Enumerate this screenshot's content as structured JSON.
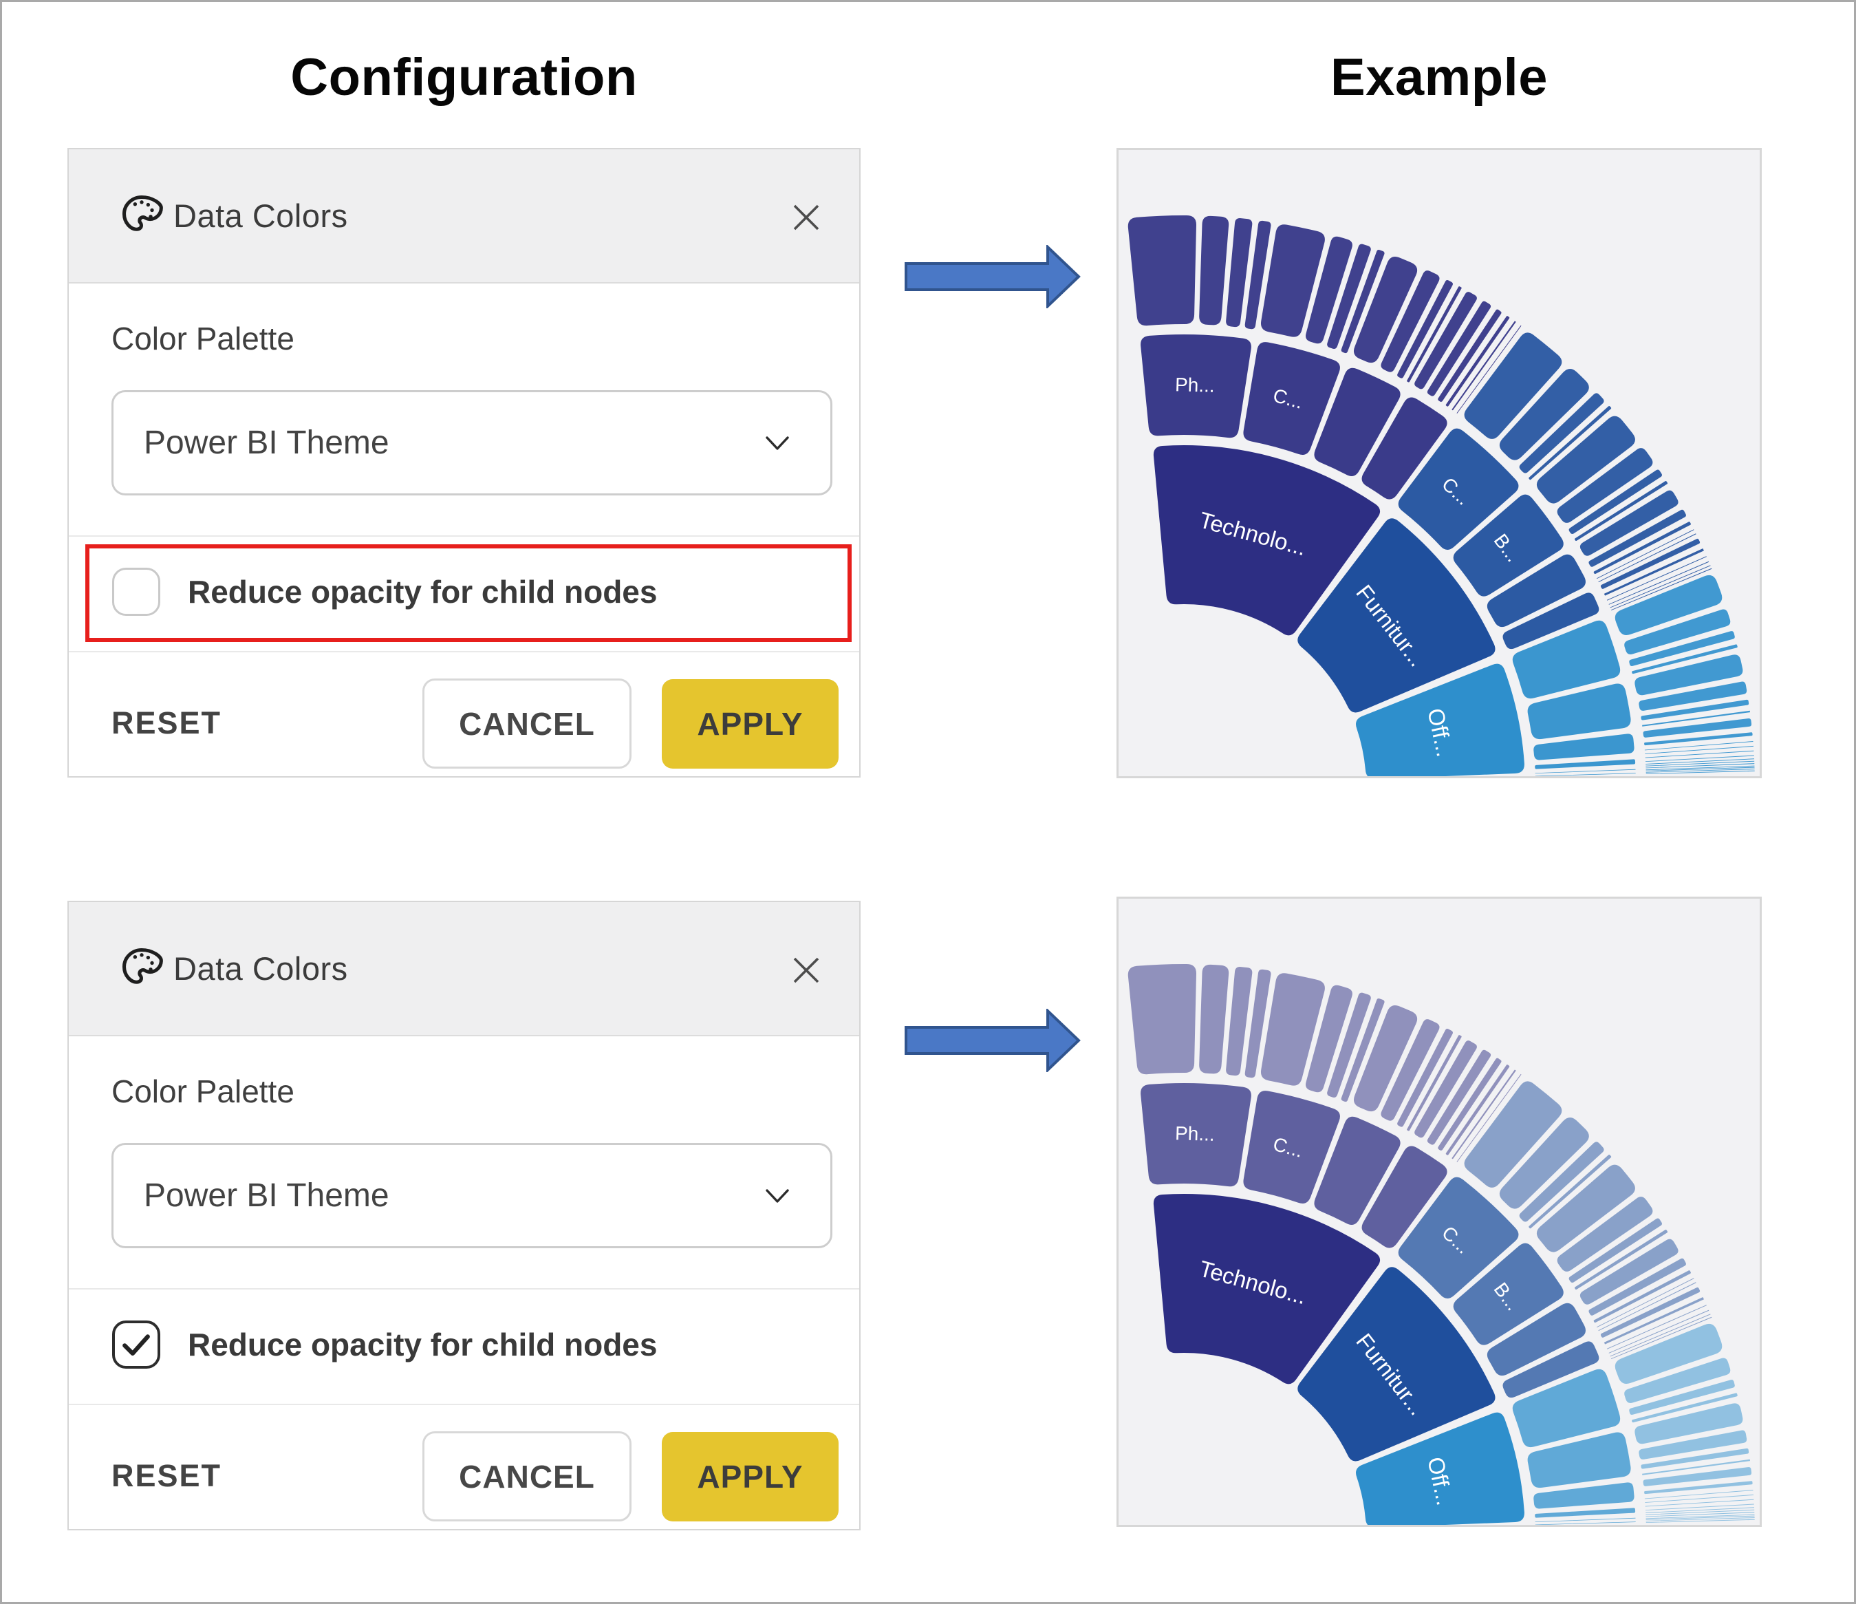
{
  "headings": {
    "configuration": "Configuration",
    "example": "Example"
  },
  "dialog": {
    "title": "Data Colors",
    "color_palette_label": "Color Palette",
    "color_palette_value": "Power BI Theme",
    "checkbox_label": "Reduce opacity for child nodes",
    "buttons": {
      "reset": "RESET",
      "cancel": "CANCEL",
      "apply": "APPLY"
    },
    "apply_button_color": "#e5c52e",
    "header_background": "#efeff0"
  },
  "icons": {
    "palette": "palette-icon",
    "close": "close-icon",
    "chevron": "chevron-down-icon",
    "check": "check-icon",
    "arrow": "arrow-right-icon"
  },
  "panels": [
    {
      "checkbox_checked": false,
      "checkbox_highlighted": true,
      "highlight_color": "#e71f1c"
    },
    {
      "checkbox_checked": true,
      "checkbox_highlighted": false
    }
  ],
  "arrow": {
    "fill": "#4a78c6",
    "stroke": "#30548e"
  },
  "example_background": "#f2f2f4",
  "chart_data": {
    "type": "sunburst",
    "description": "Drill-down sunburst fan with 3 levels (category > subcategory > product); values are estimated percent shares read from the segment sizes",
    "start_angle_deg": 96,
    "end_angle_deg": 1.5,
    "level_lighten": [
      0,
      0.06,
      0.09
    ],
    "categories": [
      {
        "label": "Technolo...",
        "color": "#2d2e83",
        "children": [
          {
            "label": "Ph...",
            "products": [
              8,
              3.5,
              2.5,
              2
            ]
          },
          {
            "label": "C...",
            "products": [
              6,
              3,
              2,
              1.5
            ]
          },
          {
            "label": null,
            "products": [
              4,
              2.5,
              1.5,
              1
            ]
          },
          {
            "label": null,
            "products": [
              2,
              1.7,
              1.3,
              1,
              0.8,
              0.7
            ]
          }
        ]
      },
      {
        "label": "Furnitur...",
        "color": "#1f4f9d",
        "children": [
          {
            "label": "C...",
            "products": [
              6,
              4,
              2,
              1
            ]
          },
          {
            "label": "B...",
            "products": [
              4.5,
              3,
              1.5,
              1
            ]
          },
          {
            "label": null,
            "products": [
              2.5,
              1.5,
              1,
              0.6,
              0.4
            ]
          },
          {
            "label": null,
            "products": [
              1.2,
              0.9,
              0.7,
              0.5,
              0.4,
              0.3
            ]
          }
        ]
      },
      {
        "label": "Off...",
        "color": "#2e8fcc",
        "children": [
          {
            "label": null,
            "products": [
              4,
              2.5,
              1.5,
              1
            ]
          },
          {
            "label": null,
            "products": [
              3,
              2,
              1.2,
              0.8
            ]
          },
          {
            "label": null,
            "products": [
              1.5,
              1,
              0.6,
              0.4
            ]
          },
          {
            "label": null,
            "products": [
              0.6,
              0.4,
              0.3,
              0.2
            ]
          },
          {
            "label": null,
            "products": [
              0.3,
              0.2,
              0.1
            ]
          },
          {
            "label": null,
            "products": [
              0.25,
              0.15
            ]
          }
        ]
      }
    ],
    "examples": [
      {
        "name": "default",
        "level_opacity": [
          1,
          1,
          1
        ]
      },
      {
        "name": "reduced-opacity-for-child-nodes",
        "level_opacity": [
          1,
          0.8,
          0.55
        ]
      }
    ]
  }
}
